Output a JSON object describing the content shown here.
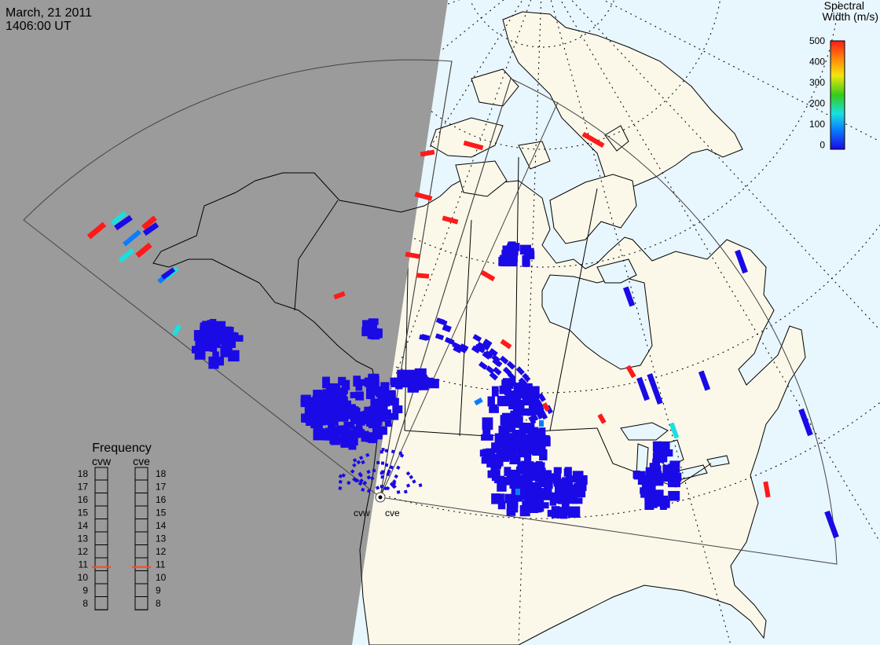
{
  "header": {
    "date": "March, 21 2011",
    "time": "1406:00 UT"
  },
  "colorbar": {
    "title_line1": "Spectral",
    "title_line2": "Width (m/s)",
    "ticks": [
      "500",
      "400",
      "300",
      "200",
      "100",
      "0"
    ],
    "scale_min": 0,
    "scale_max": 500,
    "colors": [
      "#1a0ae6",
      "#0a7dff",
      "#19e0e0",
      "#33cc1a",
      "#f2e60d",
      "#ff8a0a",
      "#ff1a1a"
    ]
  },
  "frequency": {
    "title": "Frequency",
    "radars": [
      {
        "name": "cvw",
        "value_mhz": 10.8
      },
      {
        "name": "cve",
        "value_mhz": 10.8
      }
    ],
    "scale": [
      "18",
      "17",
      "16",
      "15",
      "14",
      "13",
      "12",
      "11",
      "10",
      "9",
      "8"
    ],
    "marker_color": "#ff4a14"
  },
  "stations": {
    "west": "cvw",
    "east": "cve"
  },
  "colors": {
    "night": "#9b9b9b",
    "ocean_day": "#e8f6fd",
    "land_day": "#fbf8ea",
    "red": "#ff1a1a",
    "blue": "#1a0ae6",
    "cyan": "#19e0e0",
    "lightblue": "#0a7dff"
  }
}
